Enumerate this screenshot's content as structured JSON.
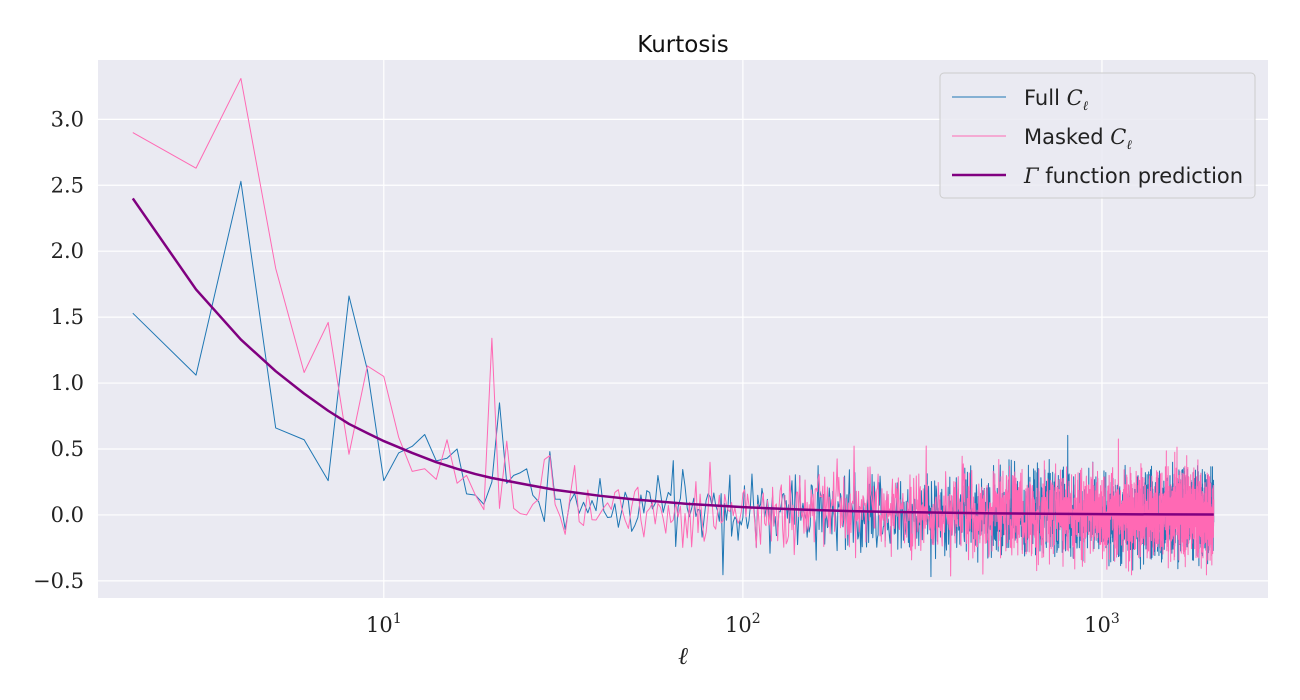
{
  "chart_data": {
    "type": "line",
    "title": "Kurtosis",
    "xlabel": "ℓ",
    "ylabel": "",
    "xscale": "log",
    "xlim": [
      1.6,
      2900
    ],
    "ylim": [
      -0.63,
      3.45
    ],
    "x_ticks": [
      {
        "value": 10,
        "base": "10",
        "exp": "1"
      },
      {
        "value": 100,
        "base": "10",
        "exp": "2"
      },
      {
        "value": 1000,
        "base": "10",
        "exp": "3"
      }
    ],
    "y_ticks": [
      {
        "value": -0.5,
        "label": "−0.5"
      },
      {
        "value": 0.0,
        "label": "0.0"
      },
      {
        "value": 0.5,
        "label": "0.5"
      },
      {
        "value": 1.0,
        "label": "1.0"
      },
      {
        "value": 1.5,
        "label": "1.5"
      },
      {
        "value": 2.0,
        "label": "2.0"
      },
      {
        "value": 2.5,
        "label": "2.5"
      },
      {
        "value": 3.0,
        "label": "3.0"
      }
    ],
    "grid": true,
    "legend_position": "top-right",
    "series": [
      {
        "name": "Full C_ℓ",
        "legend_base": "Full ",
        "legend_math": "C",
        "legend_sub": "ℓ",
        "color": "#1f77b4",
        "stroke_width": 1,
        "noise_from": 30,
        "noise_to": 2048,
        "noise_amplitude": 0.16,
        "x": [
          2,
          3,
          4,
          5,
          6,
          7,
          8,
          9,
          10,
          11,
          12,
          13,
          14,
          15,
          16,
          17,
          18,
          19,
          20,
          21,
          22,
          23,
          24,
          25,
          26,
          27,
          28,
          29,
          30,
          40,
          50,
          60,
          70,
          80,
          90,
          100,
          150,
          200,
          300,
          500,
          1000,
          2048
        ],
        "y": [
          1.53,
          1.06,
          2.53,
          0.66,
          0.57,
          0.26,
          1.66,
          1.1,
          0.26,
          0.47,
          0.52,
          0.61,
          0.41,
          0.43,
          0.5,
          0.16,
          0.15,
          0.08,
          0.25,
          0.85,
          0.24,
          0.3,
          0.32,
          0.35,
          0.15,
          0.1,
          -0.05,
          0.48,
          0.12,
          0.08,
          0.06,
          0.05,
          0.04,
          0.03,
          0.03,
          0.03,
          0.02,
          0.02,
          0.01,
          0.01,
          0.0,
          0.0
        ]
      },
      {
        "name": "Masked C_ℓ",
        "legend_base": "Masked ",
        "legend_math": "C",
        "legend_sub": "ℓ",
        "color": "#ff69b4",
        "stroke_width": 1,
        "noise_from": 30,
        "noise_to": 2048,
        "noise_amplitude": 0.17,
        "x": [
          2,
          3,
          4,
          5,
          6,
          7,
          8,
          9,
          10,
          11,
          12,
          13,
          14,
          15,
          16,
          17,
          18,
          19,
          20,
          21,
          22,
          23,
          24,
          25,
          26,
          27,
          28,
          29,
          30,
          40,
          50,
          60,
          70,
          80,
          90,
          100,
          150,
          200,
          300,
          500,
          1000,
          2048
        ],
        "y": [
          2.9,
          2.63,
          3.31,
          1.87,
          1.08,
          1.46,
          0.46,
          1.13,
          1.05,
          0.59,
          0.33,
          0.35,
          0.27,
          0.57,
          0.24,
          0.3,
          0.15,
          0.04,
          1.34,
          0.05,
          0.56,
          0.05,
          0.01,
          0.0,
          0.08,
          0.12,
          0.42,
          0.45,
          0.08,
          0.1,
          0.08,
          0.07,
          0.06,
          0.05,
          0.05,
          0.04,
          0.04,
          0.03,
          0.03,
          0.02,
          0.01,
          0.01
        ]
      },
      {
        "name": "Γ function prediction",
        "legend_base": "",
        "legend_math": "Γ",
        "legend_after": " function prediction",
        "legend_sub": "",
        "color": "#800080",
        "stroke_width": 2.5,
        "x": [
          2,
          3,
          4,
          5,
          6,
          7,
          8,
          9,
          10,
          12,
          14,
          16,
          18,
          20,
          25,
          30,
          40,
          50,
          70,
          100,
          150,
          200,
          300,
          500,
          700,
          1000,
          1500,
          2048
        ],
        "y": [
          2.4,
          1.71,
          1.33,
          1.09,
          0.92,
          0.79,
          0.69,
          0.62,
          0.56,
          0.47,
          0.4,
          0.35,
          0.31,
          0.28,
          0.23,
          0.19,
          0.145,
          0.117,
          0.084,
          0.059,
          0.039,
          0.029,
          0.02,
          0.012,
          0.0085,
          0.006,
          0.004,
          0.003
        ]
      }
    ]
  }
}
